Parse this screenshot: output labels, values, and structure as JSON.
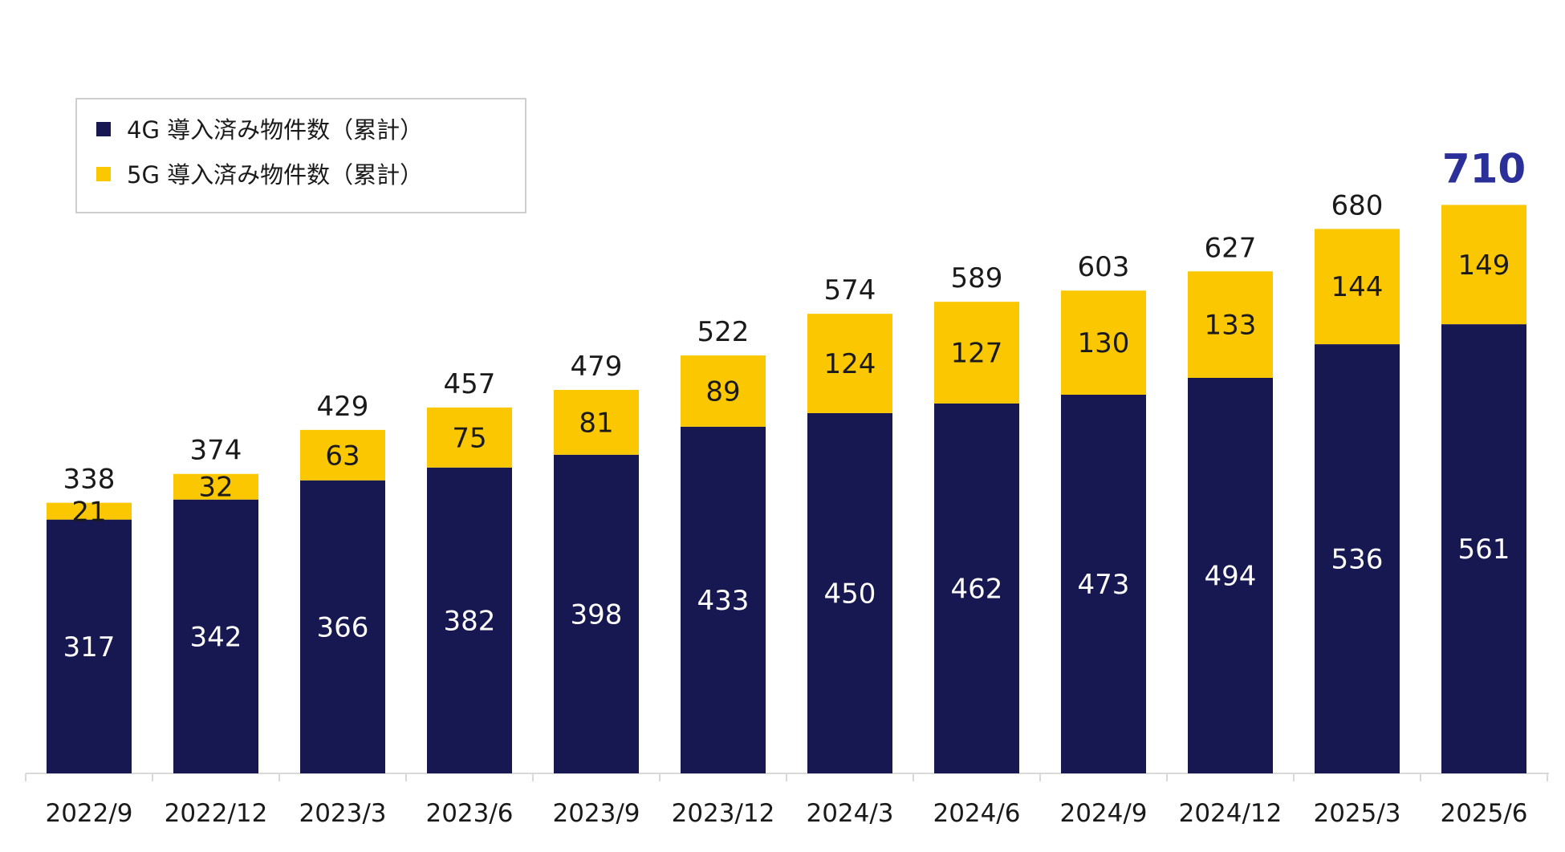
{
  "chart_data": {
    "type": "bar",
    "stacked": true,
    "categories": [
      "2022/9",
      "2022/12",
      "2023/3",
      "2023/6",
      "2023/9",
      "2023/12",
      "2024/3",
      "2024/6",
      "2024/9",
      "2024/12",
      "2025/3",
      "2025/6"
    ],
    "series": [
      {
        "name": "4G 導入済み物件数（累計）",
        "color": "#171852",
        "values": [
          317,
          342,
          366,
          382,
          398,
          433,
          450,
          462,
          473,
          494,
          536,
          561
        ]
      },
      {
        "name": "5G 導入済み物件数（累計）",
        "color": "#fbc700",
        "values": [
          21,
          32,
          63,
          75,
          81,
          89,
          124,
          127,
          130,
          133,
          144,
          149
        ]
      }
    ],
    "totals": [
      338,
      374,
      429,
      457,
      479,
      522,
      574,
      589,
      603,
      627,
      680,
      710
    ],
    "highlight_total_color": "#2b2f9a",
    "legend_position": "top-left",
    "grid": false
  }
}
